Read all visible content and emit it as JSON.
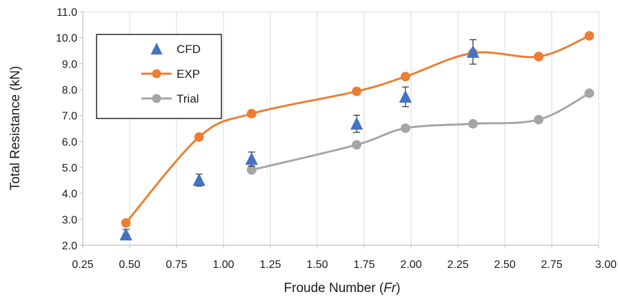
{
  "chart_data": {
    "type": "scatter",
    "xlabel": "Froude Number (",
    "xlabel_italic": "Fr",
    "xlabel_end": ")",
    "ylabel": "Total Resistance (kN)",
    "xlim": [
      0.25,
      3.0
    ],
    "ylim": [
      2.0,
      11.0
    ],
    "x_ticks": [
      0.25,
      0.5,
      0.75,
      1.0,
      1.25,
      1.5,
      1.75,
      2.0,
      2.25,
      2.5,
      2.75,
      3.0
    ],
    "x_tick_labels": [
      "0.25",
      "0.50",
      "0.75",
      "1.00",
      "1.25",
      "1.50",
      "1.75",
      "2.00",
      "2.25",
      "2.50",
      "2.75",
      "3.00"
    ],
    "y_ticks": [
      2,
      3,
      4,
      5,
      6,
      7,
      8,
      9,
      10,
      11
    ],
    "y_tick_labels": [
      "2.0",
      "3.0",
      "4.0",
      "5.0",
      "6.0",
      "7.0",
      "8.0",
      "9.0",
      "10.0",
      "11.0"
    ],
    "grid": "vertical",
    "legend_position": "top-left",
    "series": [
      {
        "name": "CFD",
        "marker": "triangle",
        "color": "#4472C4",
        "line": false,
        "x": [
          0.48,
          0.87,
          1.15,
          1.71,
          1.97,
          2.33
        ],
        "y": [
          2.41,
          4.51,
          5.32,
          6.68,
          7.72,
          9.45
        ],
        "error": [
          0.2,
          0.23,
          0.27,
          0.33,
          0.38,
          0.47
        ]
      },
      {
        "name": "EXP",
        "marker": "circle",
        "color": "#ED7D31",
        "line": true,
        "x": [
          0.48,
          0.87,
          1.15,
          1.71,
          1.97,
          2.33,
          2.68,
          2.95
        ],
        "y": [
          2.86,
          6.17,
          7.07,
          7.93,
          8.5,
          9.41,
          9.27,
          10.07
        ]
      },
      {
        "name": "Trial",
        "marker": "circle",
        "color": "#A5A5A5",
        "line": true,
        "x": [
          1.15,
          1.71,
          1.97,
          2.33,
          2.68,
          2.95
        ],
        "y": [
          4.9,
          5.87,
          6.51,
          6.68,
          6.84,
          7.86
        ]
      }
    ]
  }
}
